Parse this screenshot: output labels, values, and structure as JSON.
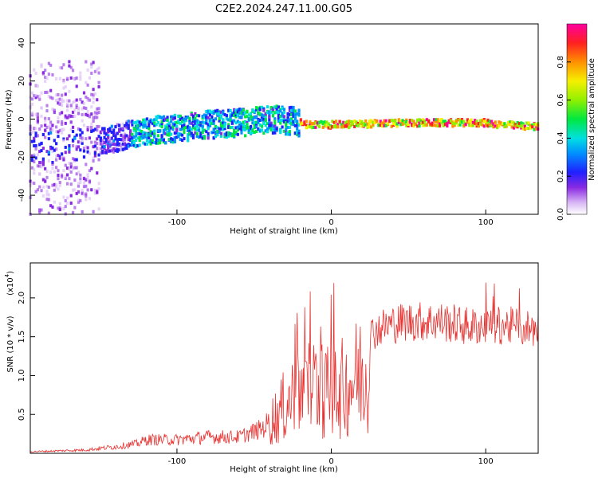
{
  "title": "C2E2.2024.247.11.00.G05",
  "chart_data": [
    {
      "type": "heatmap",
      "title": "C2E2.2024.247.11.00.G05",
      "xlabel": "Height of straight line (km)",
      "ylabel": "Frequency (Hz)",
      "xlim": [
        -195,
        134
      ],
      "ylim": [
        -50,
        50
      ],
      "x_ticks": [
        -100,
        0,
        100
      ],
      "y_ticks": [
        -40,
        -20,
        0,
        20,
        40
      ],
      "colorbar": {
        "label": "Normalized spectral amplitude",
        "range": [
          0,
          1
        ],
        "ticks": [
          0.0,
          0.2,
          0.4,
          0.6,
          0.8
        ],
        "tick_labels": [
          "0.0",
          "0.2",
          "0.4",
          "0.6",
          "0.8"
        ]
      },
      "ridge_frequency": [
        {
          "x": -180,
          "y": -15
        },
        {
          "x": -150,
          "y": -12
        },
        {
          "x": -120,
          "y": -6
        },
        {
          "x": -100,
          "y": -5
        },
        {
          "x": -80,
          "y": -3
        },
        {
          "x": -60,
          "y": -2
        },
        {
          "x": -40,
          "y": 0
        },
        {
          "x": -25,
          "y": -1
        },
        {
          "x": -15,
          "y": -3
        },
        {
          "x": 0,
          "y": -3
        },
        {
          "x": 50,
          "y": -2
        },
        {
          "x": 100,
          "y": -2
        },
        {
          "x": 110,
          "y": -3
        },
        {
          "x": 134,
          "y": -4
        }
      ],
      "grid": false,
      "legend": "none"
    },
    {
      "type": "line",
      "series": [
        {
          "name": "",
          "color": "#e8312f"
        }
      ],
      "xlabel": "Height of straight line (km)",
      "ylabel": "SNR (10 * v/v)",
      "y_scale_label": "(x10",
      "y_scale_exp": "4",
      "xlim": [
        -195,
        134
      ],
      "ylim": [
        0,
        2.45
      ],
      "x_ticks": [
        -100,
        0,
        100
      ],
      "y_ticks": [
        0.5,
        1.0,
        1.5,
        2.0
      ],
      "y_tick_labels": [
        "0.5",
        "1.0",
        "1.5",
        "2.0"
      ],
      "envelope": [
        {
          "x": -195,
          "y": 0.03
        },
        {
          "x": -160,
          "y": 0.06
        },
        {
          "x": -140,
          "y": 0.12
        },
        {
          "x": -125,
          "y": 0.18
        },
        {
          "x": -120,
          "y": 0.25
        },
        {
          "x": -100,
          "y": 0.25
        },
        {
          "x": -80,
          "y": 0.3
        },
        {
          "x": -60,
          "y": 0.3
        },
        {
          "x": -45,
          "y": 0.45
        },
        {
          "x": -35,
          "y": 0.7
        },
        {
          "x": -25,
          "y": 1.05
        },
        {
          "x": -15,
          "y": 1.25
        },
        {
          "x": -5,
          "y": 1.2
        },
        {
          "x": 0,
          "y": 1.05
        },
        {
          "x": 10,
          "y": 1.25
        },
        {
          "x": 20,
          "y": 1.5
        },
        {
          "x": 30,
          "y": 1.65
        },
        {
          "x": 40,
          "y": 1.72
        },
        {
          "x": 50,
          "y": 1.75
        },
        {
          "x": 70,
          "y": 1.75
        },
        {
          "x": 90,
          "y": 1.68
        },
        {
          "x": 110,
          "y": 1.7
        },
        {
          "x": 134,
          "y": 1.65
        }
      ],
      "grid": false,
      "legend": "none"
    }
  ]
}
